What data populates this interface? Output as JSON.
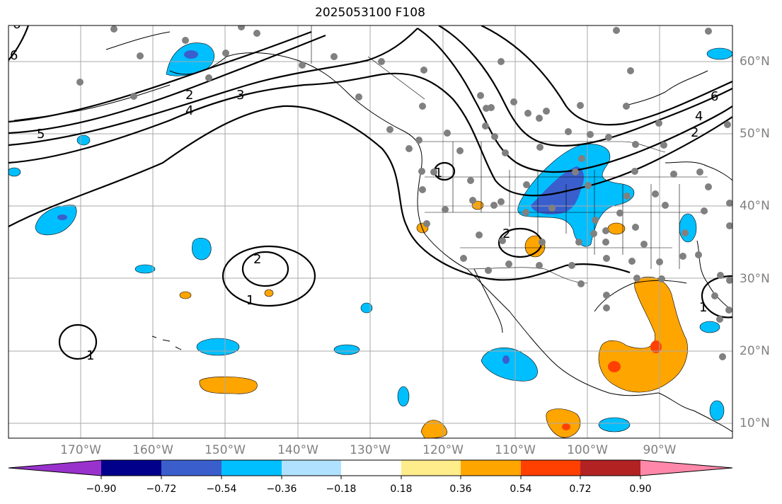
{
  "title": "2025053100 F108",
  "lat_labels": [
    "60°N",
    "50°N",
    "40°N",
    "30°N",
    "20°N",
    "10°N"
  ],
  "lon_labels": [
    "170°W",
    "160°W",
    "150°W",
    "140°W",
    "130°W",
    "120°W",
    "110°W",
    "100°W",
    "90°W"
  ],
  "colorbar": {
    "ticks": [
      "−0.90",
      "−0.72",
      "−0.54",
      "−0.36",
      "−0.18",
      "0.18",
      "0.36",
      "0.54",
      "0.72",
      "0.90"
    ],
    "colors": [
      "#9932cc",
      "#00008b",
      "#3a5fcd",
      "#00bfff",
      "#b0e2ff",
      "#ffffff",
      "#ffec8b",
      "#ffa500",
      "#ff4000",
      "#b22222",
      "#ff88aa"
    ]
  },
  "contour_labels": [
    "6",
    "6",
    "5",
    "4",
    "3",
    "2",
    "1",
    "2",
    "1",
    "1",
    "6",
    "4",
    "2",
    "1",
    "2"
  ],
  "colors": {
    "contour": "#000000",
    "grid": "#a9a9a9",
    "station": "#808080",
    "coast": "#000000"
  }
}
